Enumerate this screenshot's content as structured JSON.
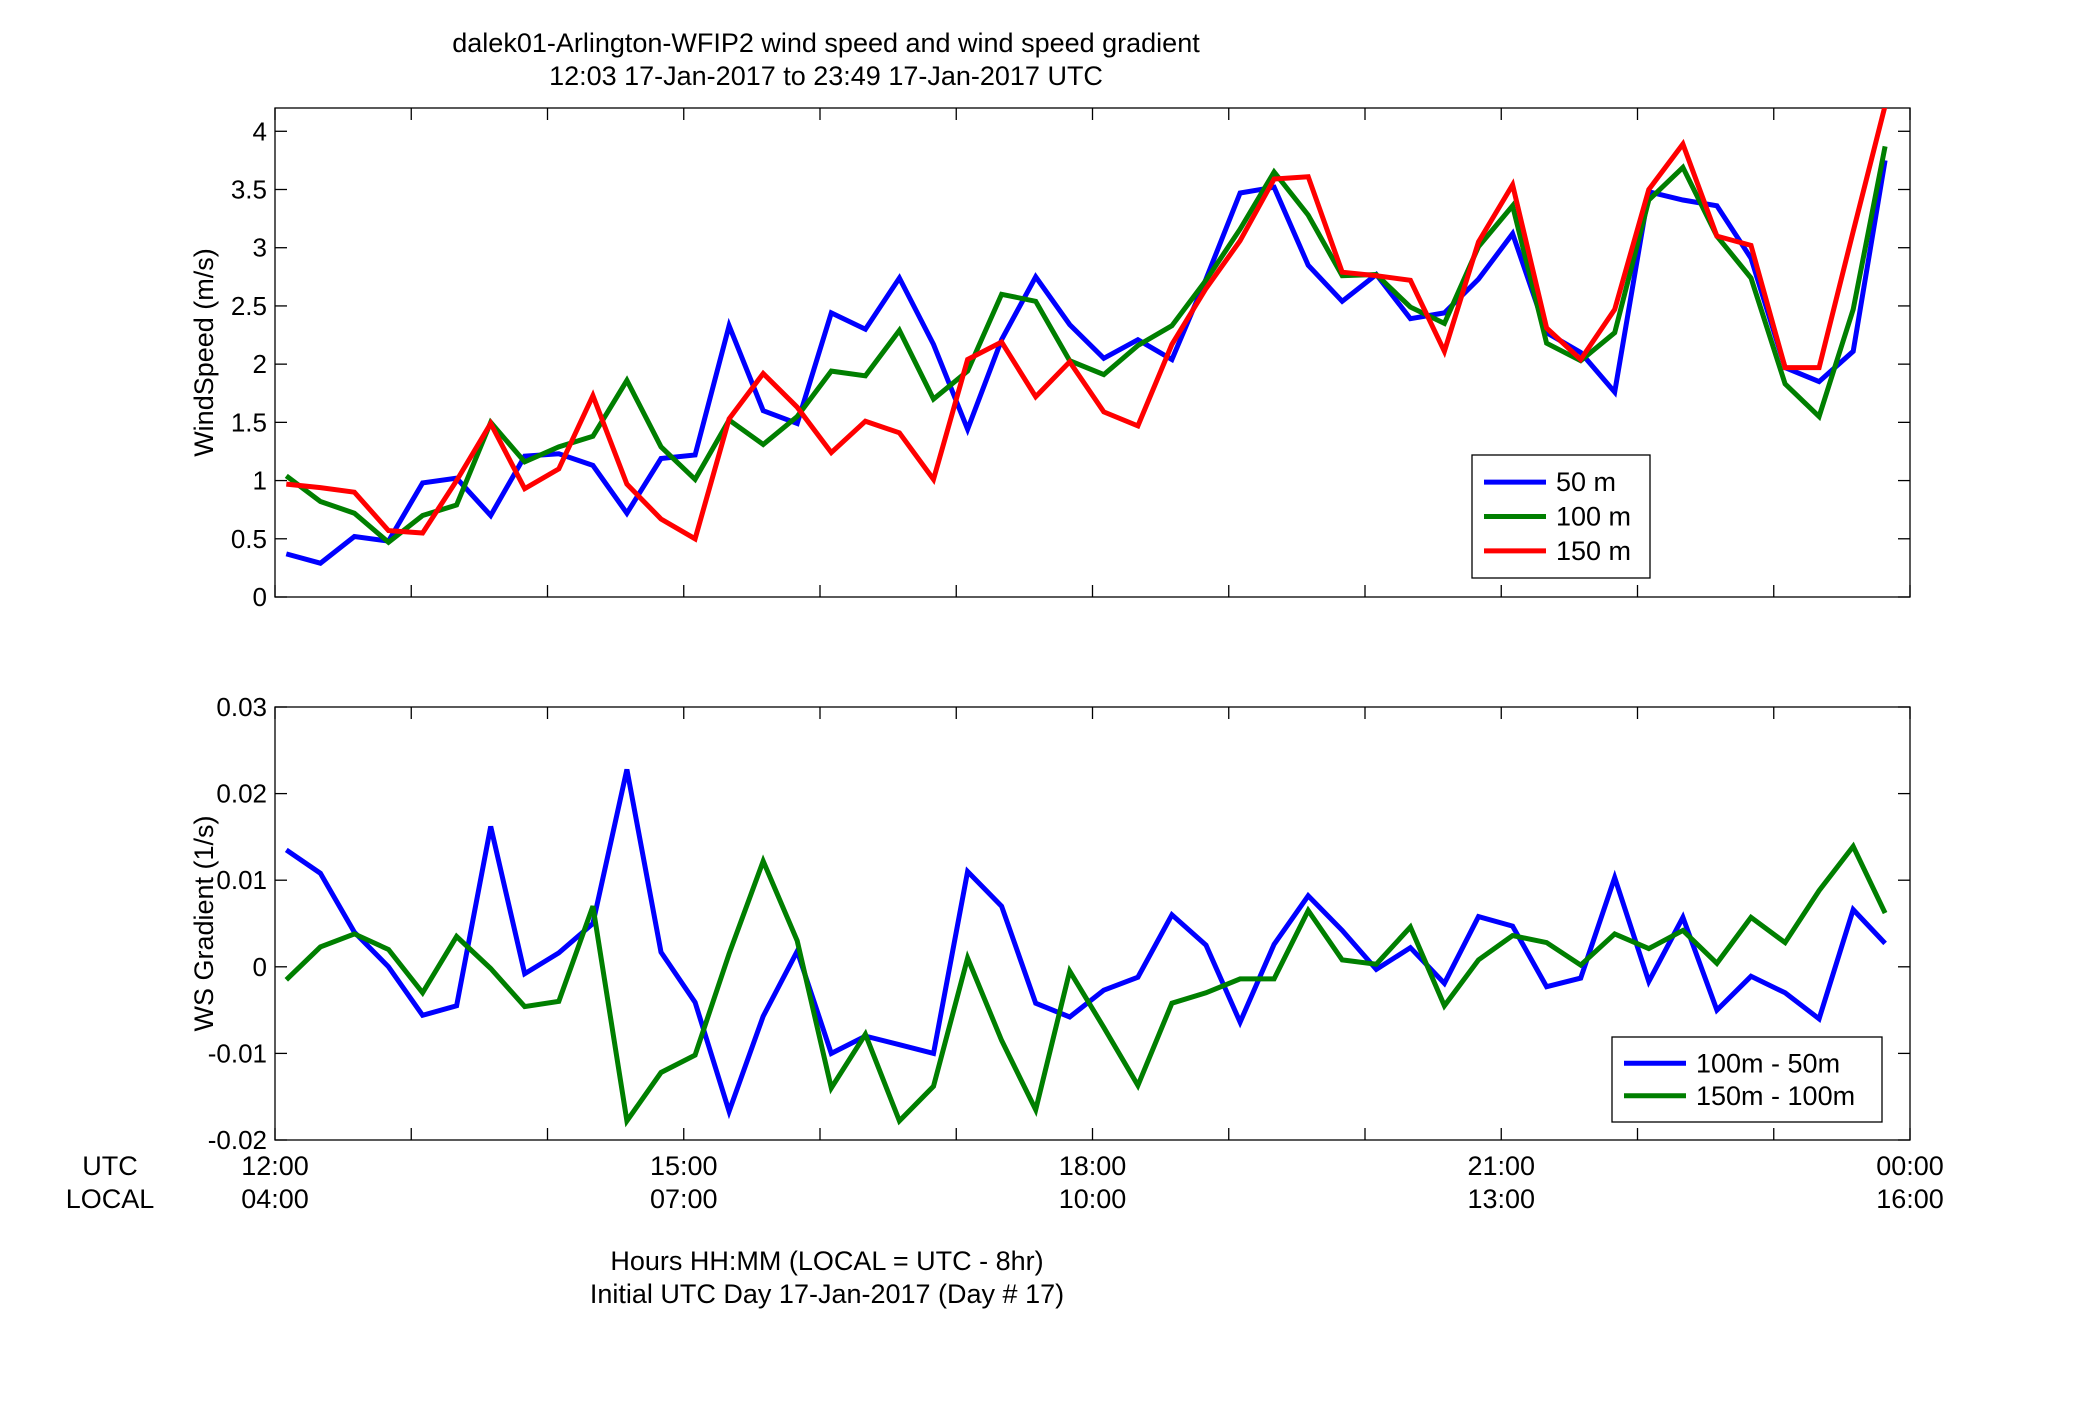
{
  "title": {
    "line1": "dalek01-Arlington-WFIP2  wind speed and wind speed gradient",
    "line2": "12:03 17-Jan-2017 to 23:49 17-Jan-2017  UTC"
  },
  "xaxis": {
    "row_labels": [
      "UTC",
      "LOCAL"
    ],
    "utc_ticks": [
      "12:00",
      "15:00",
      "18:00",
      "21:00",
      "00:00"
    ],
    "local_ticks": [
      "04:00",
      "07:00",
      "10:00",
      "13:00",
      "16:00"
    ],
    "label_line1": "Hours HH:MM  (LOCAL = UTC - 8hr)",
    "label_line2": "Initial UTC Day 17-Jan-2017 (Day # 17)"
  },
  "chart_data": [
    {
      "type": "line",
      "ylabel": "WindSpeed (m/s)",
      "xlim": [
        12.0,
        24.0
      ],
      "ylim": [
        0,
        4.2
      ],
      "yticks": [
        0,
        0.5,
        1,
        1.5,
        2,
        2.5,
        3,
        3.5,
        4
      ],
      "ytick_labels": [
        "0",
        "0.5",
        "1",
        "1.5",
        "2",
        "2.5",
        "3",
        "3.5",
        "4"
      ],
      "legend_position": "lower-right",
      "x": [
        12.083,
        12.333,
        12.583,
        12.833,
        13.083,
        13.333,
        13.583,
        13.833,
        14.083,
        14.333,
        14.583,
        14.833,
        15.083,
        15.333,
        15.583,
        15.833,
        16.083,
        16.333,
        16.583,
        16.833,
        17.083,
        17.333,
        17.583,
        17.833,
        18.083,
        18.333,
        18.583,
        18.833,
        19.083,
        19.333,
        19.583,
        19.833,
        20.083,
        20.333,
        20.583,
        20.833,
        21.083,
        21.333,
        21.583,
        21.833,
        22.083,
        22.333,
        22.583,
        22.833,
        23.083,
        23.333,
        23.583,
        23.817
      ],
      "series": [
        {
          "name": "50 m",
          "color": "#0000ff",
          "values": [
            0.37,
            0.29,
            0.52,
            0.48,
            0.98,
            1.02,
            0.7,
            1.21,
            1.23,
            1.13,
            0.72,
            1.19,
            1.22,
            2.33,
            1.6,
            1.49,
            2.44,
            2.3,
            2.74,
            2.17,
            1.44,
            2.21,
            2.75,
            2.34,
            2.05,
            2.21,
            2.04,
            2.73,
            3.47,
            3.52,
            2.85,
            2.54,
            2.77,
            2.39,
            2.44,
            2.73,
            3.12,
            2.27,
            2.1,
            1.76,
            3.48,
            3.41,
            3.36,
            2.91,
            1.97,
            1.85,
            2.11,
            3.75
          ]
        },
        {
          "name": "100 m",
          "color": "#007f00",
          "values": [
            1.04,
            0.82,
            0.72,
            0.47,
            0.7,
            0.79,
            1.5,
            1.16,
            1.29,
            1.38,
            1.86,
            1.29,
            1.01,
            1.52,
            1.31,
            1.55,
            1.94,
            1.9,
            2.29,
            1.7,
            1.94,
            2.6,
            2.54,
            2.03,
            1.91,
            2.16,
            2.33,
            2.72,
            3.16,
            3.65,
            3.28,
            2.76,
            2.77,
            2.49,
            2.35,
            3.01,
            3.36,
            2.18,
            2.03,
            2.27,
            3.41,
            3.69,
            3.1,
            2.74,
            1.83,
            1.55,
            2.47,
            3.87
          ]
        },
        {
          "name": "150 m",
          "color": "#ff0000",
          "values": [
            0.97,
            0.94,
            0.9,
            0.57,
            0.55,
            1.0,
            1.49,
            0.93,
            1.1,
            1.73,
            0.97,
            0.67,
            0.5,
            1.53,
            1.92,
            1.63,
            1.24,
            1.51,
            1.41,
            1.01,
            2.04,
            2.19,
            1.72,
            2.02,
            1.59,
            1.47,
            2.17,
            2.65,
            3.06,
            3.59,
            3.61,
            2.79,
            2.76,
            2.72,
            2.11,
            3.05,
            3.54,
            2.31,
            2.04,
            2.47,
            3.5,
            3.89,
            3.1,
            3.02,
            1.97,
            1.97,
            3.14,
            4.22
          ]
        }
      ]
    },
    {
      "type": "line",
      "ylabel": "WS Gradient (1/s)",
      "xlim": [
        12.0,
        24.0
      ],
      "ylim": [
        -0.02,
        0.03
      ],
      "yticks": [
        -0.02,
        -0.01,
        0,
        0.01,
        0.02,
        0.03
      ],
      "ytick_labels": [
        "-0.02",
        "-0.01",
        "0",
        "0.01",
        "0.02",
        "0.03"
      ],
      "legend_position": "lower-right",
      "x": [
        12.083,
        12.333,
        12.583,
        12.833,
        13.083,
        13.333,
        13.583,
        13.833,
        14.083,
        14.333,
        14.583,
        14.833,
        15.083,
        15.333,
        15.583,
        15.833,
        16.083,
        16.333,
        16.583,
        16.833,
        17.083,
        17.333,
        17.583,
        17.833,
        18.083,
        18.333,
        18.583,
        18.833,
        19.083,
        19.333,
        19.583,
        19.833,
        20.083,
        20.333,
        20.583,
        20.833,
        21.083,
        21.333,
        21.583,
        21.833,
        22.083,
        22.333,
        22.583,
        22.833,
        23.083,
        23.333,
        23.583,
        23.817
      ],
      "series": [
        {
          "name": "100m - 50m",
          "color": "#0000ff",
          "values": [
            0.0135,
            0.0108,
            0.004,
            0.0,
            -0.0056,
            -0.0045,
            0.0162,
            -0.0008,
            0.0016,
            0.005,
            0.0228,
            0.0017,
            -0.0041,
            -0.0167,
            -0.0057,
            0.0018,
            -0.01,
            -0.008,
            -0.009,
            -0.01,
            0.011,
            0.007,
            -0.0042,
            -0.0058,
            -0.0027,
            -0.0012,
            0.006,
            0.0025,
            -0.0064,
            0.0026,
            0.0082,
            0.0042,
            -0.0003,
            0.0022,
            -0.0019,
            0.0058,
            0.0047,
            -0.0023,
            -0.0013,
            0.0103,
            -0.0017,
            0.0057,
            -0.005,
            -0.0011,
            -0.003,
            -0.006,
            0.0066,
            0.0027
          ]
        },
        {
          "name": "150m - 100m",
          "color": "#007f00",
          "values": [
            -0.0015,
            0.0023,
            0.0038,
            0.002,
            -0.003,
            0.0035,
            -0.0002,
            -0.0046,
            -0.004,
            0.007,
            -0.0178,
            -0.0122,
            -0.0102,
            0.0015,
            0.0122,
            0.003,
            -0.014,
            -0.0078,
            -0.0178,
            -0.0138,
            0.001,
            -0.0085,
            -0.0165,
            -0.0005,
            -0.007,
            -0.0137,
            -0.0042,
            -0.003,
            -0.0014,
            -0.0014,
            0.0065,
            0.0008,
            0.0003,
            0.0046,
            -0.0045,
            0.0008,
            0.0036,
            0.0028,
            0.0002,
            0.0038,
            0.0021,
            0.0042,
            0.0004,
            0.0057,
            0.0028,
            0.0088,
            0.0139,
            0.0062
          ]
        }
      ]
    }
  ]
}
